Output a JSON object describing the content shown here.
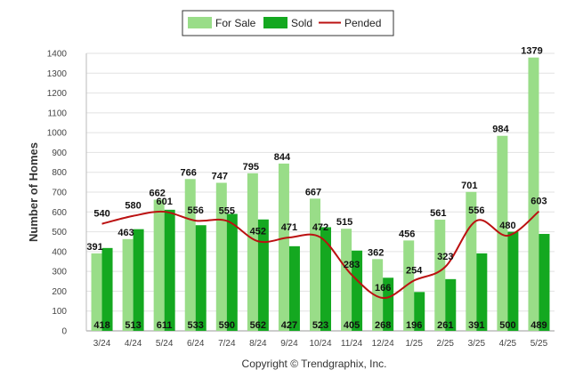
{
  "chart_data": {
    "type": "bar",
    "categories": [
      "3/24",
      "4/24",
      "5/24",
      "6/24",
      "7/24",
      "8/24",
      "9/24",
      "10/24",
      "11/24",
      "12/24",
      "1/25",
      "2/25",
      "3/25",
      "4/25",
      "5/25"
    ],
    "series": [
      {
        "name": "For Sale",
        "type": "bar",
        "color": "#99dd88",
        "values": [
          391,
          463,
          662,
          766,
          747,
          795,
          844,
          667,
          515,
          362,
          456,
          561,
          701,
          984,
          1379
        ]
      },
      {
        "name": "Sold",
        "type": "bar",
        "color": "#14a820",
        "values": [
          418,
          513,
          611,
          533,
          590,
          562,
          427,
          523,
          405,
          268,
          196,
          261,
          391,
          500,
          489
        ]
      },
      {
        "name": "Pended",
        "type": "line",
        "color": "#bb1111",
        "values": [
          540,
          580,
          601,
          556,
          555,
          452,
          471,
          472,
          283,
          166,
          254,
          323,
          556,
          480,
          603
        ]
      }
    ],
    "ylabel": "Number of Homes",
    "xlabel": "",
    "ylim": [
      0,
      1400
    ],
    "yticks": [
      0,
      100,
      200,
      300,
      400,
      500,
      600,
      700,
      800,
      900,
      1000,
      1100,
      1200,
      1300,
      1400
    ],
    "grid": true,
    "legend": "top-center"
  },
  "copyright": "Copyright © Trendgraphix, Inc."
}
